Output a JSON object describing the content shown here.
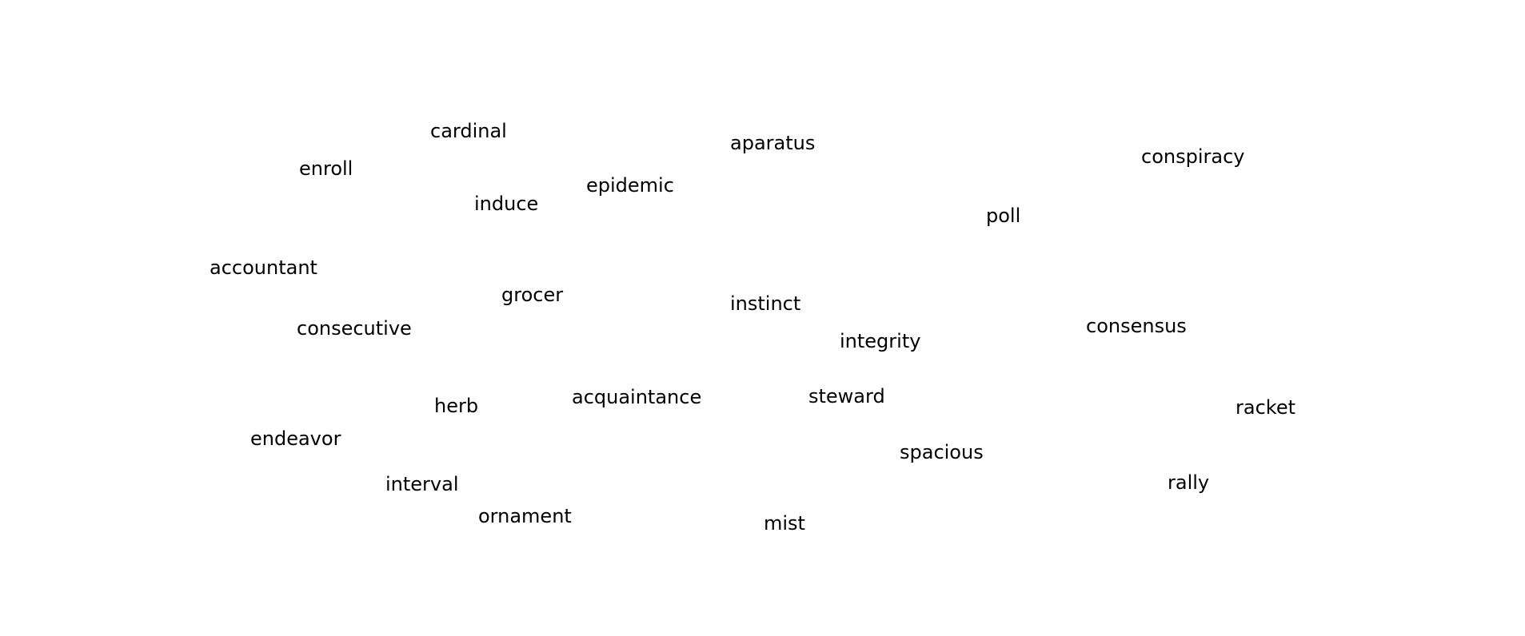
{
  "words": {
    "cardinal": "cardinal",
    "aparatus": "aparatus",
    "conspiracy": "conspiracy",
    "enroll": "enroll",
    "epidemic": "epidemic",
    "induce": "induce",
    "poll": "poll",
    "accountant": "accountant",
    "grocer": "grocer",
    "instinct": "instinct",
    "consecutive": "consecutive",
    "consensus": "consensus",
    "integrity": "integrity",
    "acquaintance": "acquaintance",
    "steward": "steward",
    "herb": "herb",
    "racket": "racket",
    "endeavor": "endeavor",
    "spacious": "spacious",
    "interval": "interval",
    "rally": "rally",
    "ornament": "ornament",
    "mist": "mist"
  },
  "colors": {
    "background": "#ffffff",
    "text": "#000000"
  }
}
